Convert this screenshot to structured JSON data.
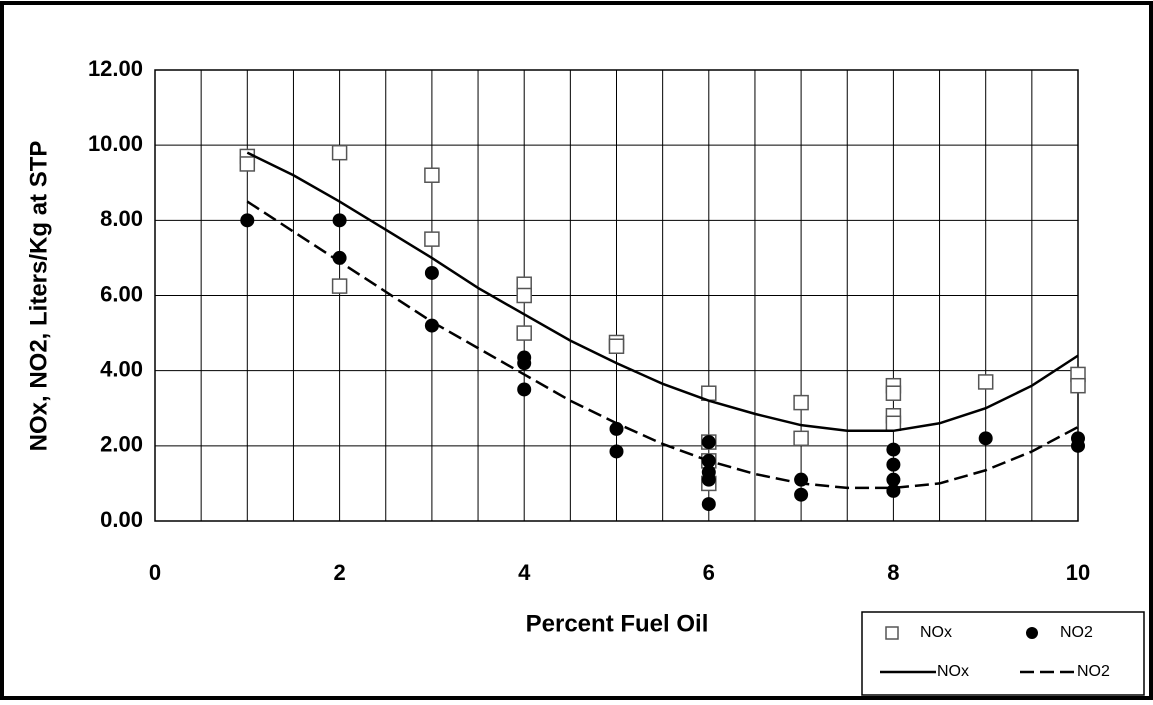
{
  "chart_data": {
    "type": "scatter",
    "xlabel": "Percent Fuel Oil",
    "ylabel": "NOx, NO2, Liters/Kg at STP",
    "xlim": [
      0,
      10
    ],
    "ylim": [
      0,
      12
    ],
    "xticks": [
      0,
      2,
      4,
      6,
      8,
      10
    ],
    "xgrid": [
      0,
      0.5,
      1,
      1.5,
      2,
      2.5,
      3,
      3.5,
      4,
      4.5,
      5,
      5.5,
      6,
      6.5,
      7,
      7.5,
      8,
      8.5,
      9,
      9.5,
      10
    ],
    "yticks": [
      {
        "value": 0,
        "label": "0.00"
      },
      {
        "value": 2,
        "label": "2.00"
      },
      {
        "value": 4,
        "label": "4.00"
      },
      {
        "value": 6,
        "label": "6.00"
      },
      {
        "value": 8,
        "label": "8.00"
      },
      {
        "value": 10,
        "label": "10.00"
      },
      {
        "value": 12,
        "label": "12.00"
      }
    ],
    "grid": true,
    "legend": "lower right",
    "series": [
      {
        "name": "NOx",
        "type": "scatter",
        "marker": "square",
        "color": "#555555",
        "x": [
          1,
          1,
          2,
          2,
          3,
          3,
          4,
          4,
          4,
          5,
          5,
          6,
          6,
          6,
          6,
          7,
          7,
          8,
          8,
          8,
          8,
          9,
          10,
          10
        ],
        "values": [
          9.7,
          9.5,
          9.8,
          6.25,
          9.2,
          7.5,
          6.3,
          6.0,
          5.0,
          4.75,
          4.65,
          3.4,
          2.1,
          1.6,
          1.0,
          3.15,
          2.2,
          3.6,
          3.4,
          2.8,
          2.6,
          3.7,
          3.9,
          3.6
        ]
      },
      {
        "name": "NO2",
        "type": "scatter",
        "marker": "circle",
        "color": "#000000",
        "x": [
          1,
          2,
          2,
          3,
          3,
          4,
          4,
          4,
          5,
          5,
          6,
          6,
          6,
          6,
          6,
          7,
          7,
          8,
          8,
          8,
          8,
          9,
          10,
          10
        ],
        "values": [
          8.0,
          8.0,
          7.0,
          6.6,
          5.2,
          4.35,
          4.2,
          3.5,
          2.45,
          1.85,
          2.1,
          1.6,
          1.3,
          1.1,
          0.45,
          1.1,
          0.7,
          1.9,
          1.5,
          1.1,
          0.8,
          2.2,
          2.2,
          2.0
        ]
      },
      {
        "name": "NOx",
        "type": "line",
        "dash": false,
        "color": "#000000",
        "x": [
          1,
          1.5,
          2,
          2.5,
          3,
          3.5,
          4,
          4.5,
          5,
          5.5,
          6,
          6.5,
          7,
          7.5,
          8,
          8.5,
          9,
          9.5,
          10
        ],
        "values": [
          9.8,
          9.2,
          8.5,
          7.75,
          7.0,
          6.2,
          5.5,
          4.8,
          4.2,
          3.65,
          3.2,
          2.85,
          2.55,
          2.4,
          2.4,
          2.6,
          3.0,
          3.6,
          4.4
        ]
      },
      {
        "name": "NO2",
        "type": "line",
        "dash": true,
        "color": "#000000",
        "x": [
          1,
          1.5,
          2,
          2.5,
          3,
          3.5,
          4,
          4.5,
          5,
          5.5,
          6,
          6.5,
          7,
          7.5,
          8,
          8.5,
          9,
          9.5,
          10
        ],
        "values": [
          8.5,
          7.7,
          6.9,
          6.1,
          5.3,
          4.6,
          3.9,
          3.2,
          2.6,
          2.05,
          1.6,
          1.25,
          1.0,
          0.88,
          0.88,
          1.0,
          1.35,
          1.85,
          2.5
        ]
      }
    ]
  }
}
